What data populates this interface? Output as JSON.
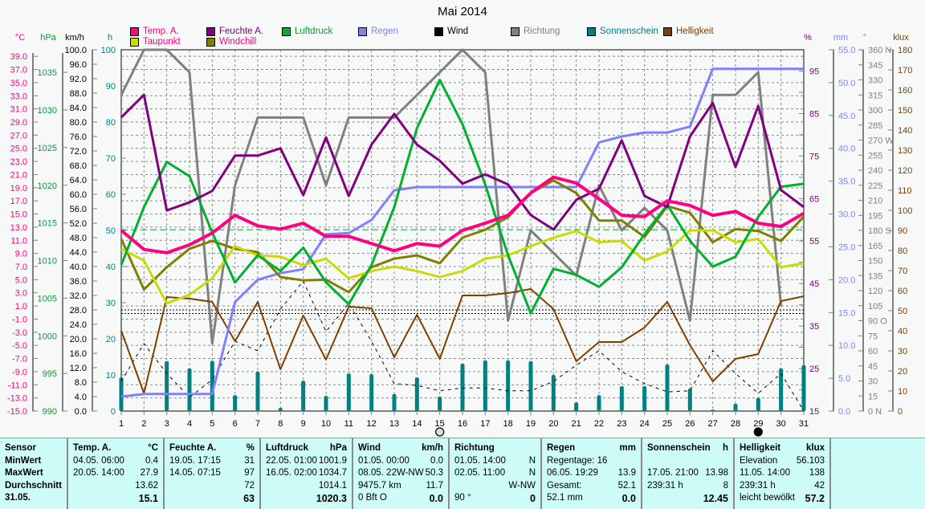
{
  "title": "Mai 2014",
  "legend": [
    {
      "label": "Temp. A.",
      "swatch": "#ff0080",
      "text": "#ff0080"
    },
    {
      "label": "Feuchte A.",
      "swatch": "#800080",
      "text": "#800080"
    },
    {
      "label": "Luftdruck",
      "swatch": "#00b030",
      "text": "#00a030"
    },
    {
      "label": "Regen",
      "swatch": "#8080ff",
      "text": "#8080ff"
    },
    {
      "label": "Wind",
      "swatch": "#000000",
      "text": "#000000"
    },
    {
      "label": "Richtung",
      "swatch": "#808080",
      "text": "#808080"
    },
    {
      "label": "Sonnenschein",
      "swatch": "#008080",
      "text": "#008080"
    },
    {
      "label": "Helligkeit",
      "swatch": "#804000",
      "text": "#804000"
    },
    {
      "label": "Taupunkt",
      "swatch": "#c8dc00",
      "text": "#ff0080"
    },
    {
      "label": "Windchill",
      "swatch": "#808000",
      "text": "#ff0080"
    }
  ],
  "chart_data": {
    "type": "line",
    "title": "Mai 2014",
    "x": [
      1,
      2,
      3,
      4,
      5,
      6,
      7,
      8,
      9,
      10,
      11,
      12,
      13,
      14,
      15,
      16,
      17,
      18,
      19,
      20,
      21,
      22,
      23,
      24,
      25,
      26,
      27,
      28,
      29,
      30,
      31
    ],
    "axes": {
      "temp": {
        "unit": "°C",
        "range": [
          -15,
          40
        ],
        "color": "#ff0080",
        "ticks": [
          "39.0",
          "37.0",
          "35.0",
          "33.0",
          "31.0",
          "29.0",
          "27.0",
          "25.0",
          "23.0",
          "21.0",
          "19.0",
          "17.0",
          "15.0",
          "13.0",
          "11.0",
          "9.0",
          "7.0",
          "5.0",
          "3.0",
          "1.0",
          "-1.0",
          "-3.0",
          "-5.0",
          "-7.0",
          "-9.0",
          "-11.0",
          "-13.0",
          "-15.0"
        ]
      },
      "pressure": {
        "unit": "hPa",
        "range": [
          990,
          1038
        ],
        "color": "#00a030",
        "ticks": [
          "1035",
          "1030",
          "1025",
          "1020",
          "1015",
          "1010",
          "1005",
          "1000",
          "995",
          "990"
        ]
      },
      "wind": {
        "unit": "km/h",
        "range": [
          0,
          100
        ],
        "color": "#000000",
        "ticks": [
          "100.0",
          "96.0",
          "92.0",
          "88.0",
          "84.0",
          "80.0",
          "76.0",
          "72.0",
          "68.0",
          "64.0",
          "60.0",
          "56.0",
          "52.0",
          "48.0",
          "44.0",
          "40.0",
          "36.0",
          "32.0",
          "28.0",
          "24.0",
          "20.0",
          "16.0",
          "12.0",
          "8.0",
          "4.0",
          "0.0"
        ]
      },
      "sun": {
        "unit": "h",
        "range": [
          0,
          100
        ],
        "color": "#008080",
        "ticks": [
          "100",
          "90",
          "80",
          "70",
          "60",
          "50",
          "40",
          "30",
          "20",
          "10",
          "0"
        ]
      },
      "humidity": {
        "unit": "%",
        "range": [
          15,
          100
        ],
        "color": "#800080",
        "ticks": [
          "95",
          "85",
          "75",
          "65",
          "55",
          "45",
          "35",
          "25",
          "15"
        ]
      },
      "rain": {
        "unit": "mm",
        "range": [
          0,
          55
        ],
        "color": "#8080ff",
        "ticks": [
          "55.0",
          "50.0",
          "45.0",
          "40.0",
          "35.0",
          "30.0",
          "25.0",
          "20.0",
          "15.0",
          "10.0",
          "5.0",
          "0.0"
        ]
      },
      "direction": {
        "unit": "°",
        "range": [
          0,
          360
        ],
        "color": "#808080",
        "ticks": [
          "360 N",
          "345",
          "330",
          "315",
          "300",
          "285",
          "270 W",
          "255",
          "240",
          "225",
          "210",
          "195",
          "180 S",
          "165",
          "150",
          "135",
          "120",
          "105",
          "90  O",
          "75",
          "60",
          "45",
          "30",
          "15",
          "0   N"
        ]
      },
      "brightness": {
        "unit": "klux",
        "range": [
          0,
          180
        ],
        "color": "#804000",
        "ticks": [
          "180",
          "170",
          "160",
          "150",
          "140",
          "130",
          "120",
          "110",
          "100",
          "90",
          "80",
          "70",
          "60",
          "50",
          "40",
          "30",
          "20",
          "10",
          "0"
        ]
      }
    },
    "series": [
      {
        "name": "Richtung",
        "axis": "direction",
        "color": "#808080",
        "width": 3,
        "values": [
          315,
          360,
          360,
          337.5,
          67.5,
          225,
          292.5,
          292.5,
          292.5,
          225,
          292.5,
          292.5,
          292.5,
          315,
          337.5,
          360,
          337.5,
          90,
          180,
          157.5,
          135,
          225,
          180,
          202.5,
          180,
          90,
          315,
          315,
          337.5,
          105,
          null
        ]
      },
      {
        "name": "Wind",
        "axis": "wind",
        "color": "#000000",
        "width": 1,
        "dash": "4,5",
        "values": [
          8.2,
          18.7,
          10.4,
          3.8,
          8.7,
          19.3,
          16.7,
          28.2,
          36,
          22,
          29.8,
          19.3,
          7.6,
          7.1,
          5.6,
          6.4,
          6.4,
          5.6,
          5.6,
          8.2,
          12.7,
          16.7,
          10.9,
          7.6,
          5.3,
          5.6,
          16.7,
          10.4,
          4.9,
          10.4,
          0
        ]
      },
      {
        "name": "Helligkeit",
        "axis": "brightness",
        "color": "#804000",
        "width": 2,
        "values": [
          40,
          8.8,
          56.8,
          56,
          54.4,
          34.8,
          54.4,
          20.8,
          47.6,
          25.6,
          52,
          51.2,
          26.8,
          48,
          26,
          57.6,
          57.6,
          58.8,
          60.8,
          50.8,
          24.8,
          34.4,
          34.4,
          41.6,
          54.4,
          32.8,
          14.8,
          26,
          28.4,
          54.8,
          57.2
        ]
      },
      {
        "name": "Regen",
        "axis": "rain",
        "color": "#8080ff",
        "width": 3,
        "values": [
          2.2,
          2.6,
          2.6,
          2.6,
          2.6,
          16.6,
          20,
          21,
          21.6,
          26.9,
          27.1,
          29.1,
          33.6,
          34.1,
          34.1,
          34.1,
          34.1,
          34.1,
          34.1,
          34.1,
          34.1,
          40.9,
          41.8,
          42.4,
          42.4,
          43.3,
          52.1,
          52.1,
          52.1,
          52.1,
          52.1
        ]
      },
      {
        "name": "Windchill",
        "axis": "temp",
        "color": "#808000",
        "width": 3,
        "values": [
          11.2,
          3.5,
          6.9,
          9.7,
          10.9,
          9.7,
          9.2,
          5.4,
          4.9,
          5,
          3.1,
          6.9,
          8.2,
          8.7,
          7.5,
          11.4,
          12.6,
          14.5,
          18.2,
          20.1,
          18.2,
          14,
          14,
          11.5,
          16.2,
          15.2,
          10.7,
          12.7,
          12.4,
          10.9,
          14.6
        ]
      },
      {
        "name": "Taupunkt",
        "axis": "temp",
        "color": "#c8dc00",
        "width": 3,
        "values": [
          9.7,
          7.9,
          1.4,
          2.7,
          5.2,
          10.1,
          8.7,
          8.5,
          7.2,
          8.2,
          5.2,
          6.3,
          7,
          6.3,
          5.4,
          6.3,
          8.2,
          8.7,
          10.1,
          11.4,
          12.4,
          10.7,
          10.9,
          7.9,
          9.3,
          12.5,
          12.5,
          10.7,
          11.2,
          6.9,
          7.5
        ]
      },
      {
        "name": "Luftdruck",
        "axis": "pressure",
        "color": "#00b030",
        "width": 3,
        "values": [
          1009.4,
          1017.1,
          1023.1,
          1021.2,
          1013.7,
          1007.1,
          1010.7,
          1008.6,
          1011.7,
          1007.1,
          1004.2,
          1009.4,
          1017.1,
          1027.6,
          1034,
          1028.1,
          1020.1,
          1010.7,
          1003,
          1008.9,
          1008.1,
          1006.5,
          1009.1,
          1013.5,
          1017.4,
          1012.6,
          1009.2,
          1010.5,
          1015.8,
          1019.8,
          1020.2
        ]
      },
      {
        "name": "Feuchte A.",
        "axis": "humidity",
        "color": "#800080",
        "width": 3,
        "values": [
          84.1,
          89.4,
          62.2,
          64.1,
          66.8,
          75.1,
          75.1,
          76.8,
          65.8,
          79.4,
          65.6,
          77.7,
          84.9,
          77.7,
          73.9,
          68.5,
          70.7,
          68.3,
          61.1,
          57.7,
          64.7,
          67.3,
          78.7,
          65.6,
          63,
          79.6,
          87.5,
          72.4,
          86.8,
          67,
          63
        ]
      },
      {
        "name": "Temp. A.",
        "axis": "temp",
        "color": "#ff0080",
        "width": 4,
        "values": [
          12.5,
          9.6,
          9.1,
          10.3,
          12.1,
          14.8,
          13.2,
          12.7,
          13.6,
          11.6,
          11.6,
          10.5,
          9.4,
          10.5,
          10.1,
          12.5,
          13.6,
          14.8,
          18.2,
          20.6,
          19.7,
          17.3,
          14.8,
          14.6,
          17,
          16.3,
          14.8,
          15.4,
          13.6,
          13.1,
          15.1
        ]
      }
    ],
    "bars": {
      "name": "Sonnenschein",
      "axis": "sun",
      "color": "#008080",
      "values": [
        9.3,
        0.2,
        13.8,
        11.8,
        13.9,
        4.4,
        10.9,
        0.9,
        8.4,
        4.2,
        10.4,
        10.2,
        4.7,
        9.3,
        4,
        13.1,
        14,
        14,
        13.8,
        10,
        2.4,
        4.4,
        6.9,
        6.9,
        12.9,
        6.2,
        0.4,
        2,
        3.6,
        11.8,
        12.7
      ]
    },
    "reference_lines": [
      {
        "name": "Luftdruck Durchschnitt",
        "axis": "pressure",
        "value": 1014.1,
        "color": "#00b030"
      },
      {
        "name": "Wind Referenz 1",
        "axis": "wind",
        "value": 28,
        "color": "#000000"
      },
      {
        "name": "Wind Referenz 2",
        "axis": "wind",
        "value": 27,
        "color": "#000000"
      }
    ],
    "moon_phases": [
      {
        "day": 15,
        "phase": "full"
      },
      {
        "day": 29,
        "phase": "new"
      }
    ]
  },
  "table": {
    "sensor": {
      "header": "Sensor",
      "rows": [
        "MinWert",
        "MaxWert",
        "Durchschnitt",
        "31.05."
      ]
    },
    "columns": [
      {
        "name": "Temp. A.",
        "unit": "°C",
        "rows": [
          [
            "04.05.  06:00",
            "0.4"
          ],
          [
            "20.05.  14:00",
            "27.9"
          ],
          [
            "",
            "13.62"
          ],
          [
            "",
            "15.1"
          ]
        ]
      },
      {
        "name": "Feuchte A.",
        "unit": "%",
        "rows": [
          [
            "19.05.  17:15",
            "31"
          ],
          [
            "14.05.  07:15",
            "97"
          ],
          [
            "",
            "72"
          ],
          [
            "",
            "63"
          ]
        ]
      },
      {
        "name": "Luftdruck",
        "unit": "hPa",
        "rows": [
          [
            "22.05.  01:00",
            "1001.9"
          ],
          [
            "16.05.  02:00",
            "1034.7"
          ],
          [
            "",
            "1014.1"
          ],
          [
            "",
            "1020.3"
          ]
        ]
      },
      {
        "name": "Wind",
        "unit": "km/h",
        "rows": [
          [
            "01.05.  00:00",
            "0.0"
          ],
          [
            "08.05.  22W-NW",
            "50.3"
          ],
          [
            "9475.7 km",
            "11.7"
          ],
          [
            "0 Bft O",
            "0.0"
          ]
        ]
      },
      {
        "name": "Richtung",
        "unit": "",
        "rows": [
          [
            "01.05.  14:00",
            "N"
          ],
          [
            "02.05.  11:00",
            "N"
          ],
          [
            "",
            "W-NW"
          ],
          [
            "90 °",
            "0"
          ]
        ]
      },
      {
        "name": "Regen",
        "unit": "mm",
        "rows": [
          [
            "Regentage: 16",
            ""
          ],
          [
            "06.05.  19:29",
            "13.9"
          ],
          [
            "Gesamt:",
            "52.1"
          ],
          [
            "52.1 mm",
            "0.0"
          ]
        ]
      },
      {
        "name": "Sonnenschein",
        "unit": "h",
        "rows": [
          [
            "",
            ""
          ],
          [
            "17.05.  21:00",
            "13.98"
          ],
          [
            "239:31 h",
            "8"
          ],
          [
            "",
            "12.45"
          ]
        ]
      },
      {
        "name": "Helligkeit",
        "unit": "klux",
        "rows": [
          [
            "Elevation",
            "56.103"
          ],
          [
            "11.05.  14:00",
            "138"
          ],
          [
            "239:31 h",
            "42"
          ],
          [
            "leicht bewölkt",
            "57.2"
          ]
        ]
      }
    ]
  }
}
